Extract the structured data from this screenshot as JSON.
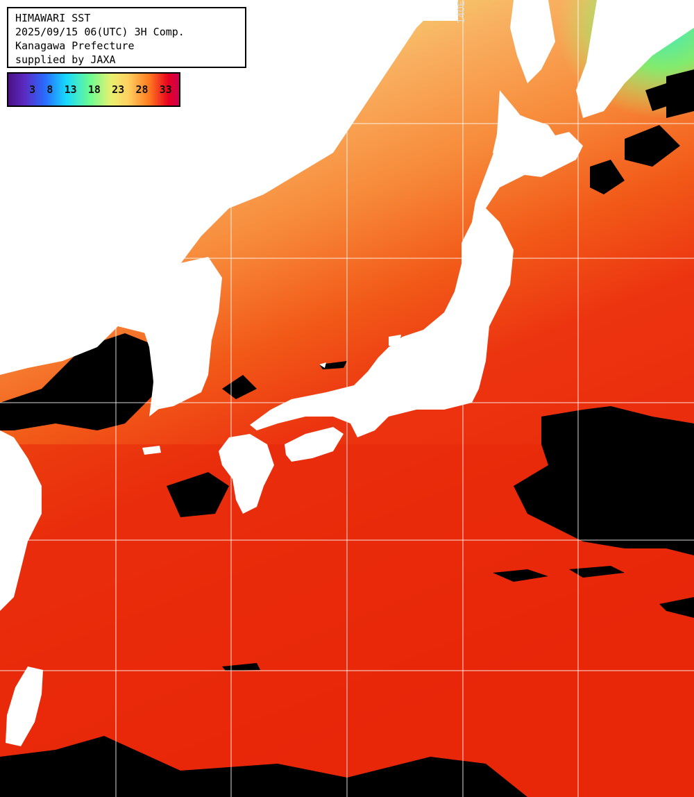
{
  "title": {
    "line1": "HIMAWARI SST",
    "line2": "2025/09/15 06(UTC) 3H Comp.",
    "line3": "Kanagawa Prefecture",
    "line4": "supplied by JAXA"
  },
  "legend": {
    "ticks": [
      "3",
      "8",
      "13",
      "18",
      "23",
      "28",
      "33"
    ],
    "colors": [
      "#5b1a8c",
      "#2a3cff",
      "#16d8ff",
      "#6dfc70",
      "#ffe870",
      "#ff8a1f",
      "#e80020",
      "#d4004a"
    ]
  },
  "grid_label": "140E",
  "palette": {
    "land": "#ffffff",
    "cloud": "#000000",
    "grid": "#ffffff"
  }
}
